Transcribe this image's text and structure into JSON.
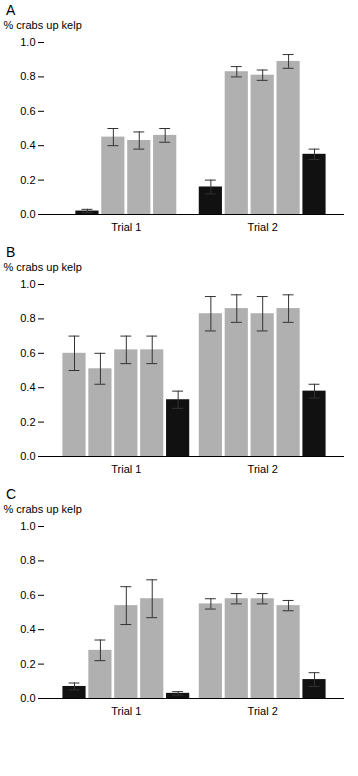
{
  "chart_data": [
    {
      "type": "bar",
      "title": "A",
      "categories": [
        "Trial 1",
        "Trial 2"
      ],
      "values": [
        [
          0.02,
          0.45,
          0.43,
          0.46
        ],
        [
          0.16,
          0.83,
          0.81,
          0.89,
          0.35
        ]
      ],
      "errors": [
        [
          0.01,
          0.05,
          0.05,
          0.04
        ],
        [
          0.04,
          0.03,
          0.03,
          0.04,
          0.03
        ]
      ],
      "colors": [
        [
          "#111111",
          "#b0b0b0",
          "#b0b0b0",
          "#b0b0b0"
        ],
        [
          "#111111",
          "#b0b0b0",
          "#b0b0b0",
          "#b0b0b0",
          "#111111"
        ]
      ],
      "ylabel": "% crabs up kelp",
      "ylim": [
        0.0,
        1.0
      ],
      "yticks": [
        {
          "value": 0.0,
          "label": "0.0"
        },
        0.2,
        0.4,
        0.6,
        0.8,
        {
          "value": 1.0,
          "label": "1.0"
        }
      ]
    },
    {
      "type": "bar",
      "title": "B",
      "categories": [
        "Trial 1",
        "Trial 2"
      ],
      "values": [
        [
          0.6,
          0.51,
          0.62,
          0.62,
          0.33
        ],
        [
          0.83,
          0.86,
          0.83,
          0.86,
          0.38
        ]
      ],
      "errors": [
        [
          0.1,
          0.09,
          0.08,
          0.08,
          0.05
        ],
        [
          0.1,
          0.08,
          0.1,
          0.08,
          0.04
        ]
      ],
      "colors": [
        [
          "#b0b0b0",
          "#b0b0b0",
          "#b0b0b0",
          "#b0b0b0",
          "#111111"
        ],
        [
          "#b0b0b0",
          "#b0b0b0",
          "#b0b0b0",
          "#b0b0b0",
          "#111111"
        ]
      ],
      "ylabel": "% crabs up kelp",
      "ylim": [
        0.0,
        1.0
      ],
      "yticks": [
        {
          "value": 0.0,
          "label": "0.0"
        },
        0.2,
        0.4,
        0.6,
        0.8,
        {
          "value": 1.0,
          "label": "1.0"
        }
      ]
    },
    {
      "type": "bar",
      "title": "C",
      "categories": [
        "Trial 1",
        "Trial 2"
      ],
      "values": [
        [
          0.07,
          0.28,
          0.54,
          0.58,
          0.03
        ],
        [
          0.55,
          0.58,
          0.58,
          0.54,
          0.11
        ]
      ],
      "errors": [
        [
          0.02,
          0.06,
          0.11,
          0.11,
          0.01
        ],
        [
          0.03,
          0.03,
          0.03,
          0.03,
          0.04
        ]
      ],
      "colors": [
        [
          "#111111",
          "#b0b0b0",
          "#b0b0b0",
          "#b0b0b0",
          "#111111"
        ],
        [
          "#b0b0b0",
          "#b0b0b0",
          "#b0b0b0",
          "#b0b0b0",
          "#111111"
        ]
      ],
      "ylabel": "% crabs up kelp",
      "ylim": [
        0.0,
        1.0
      ],
      "yticks": [
        {
          "value": 0.0,
          "label": "0.0"
        },
        0.2,
        0.4,
        0.6,
        0.8,
        {
          "value": 1.0,
          "label": "1.0"
        }
      ]
    }
  ]
}
